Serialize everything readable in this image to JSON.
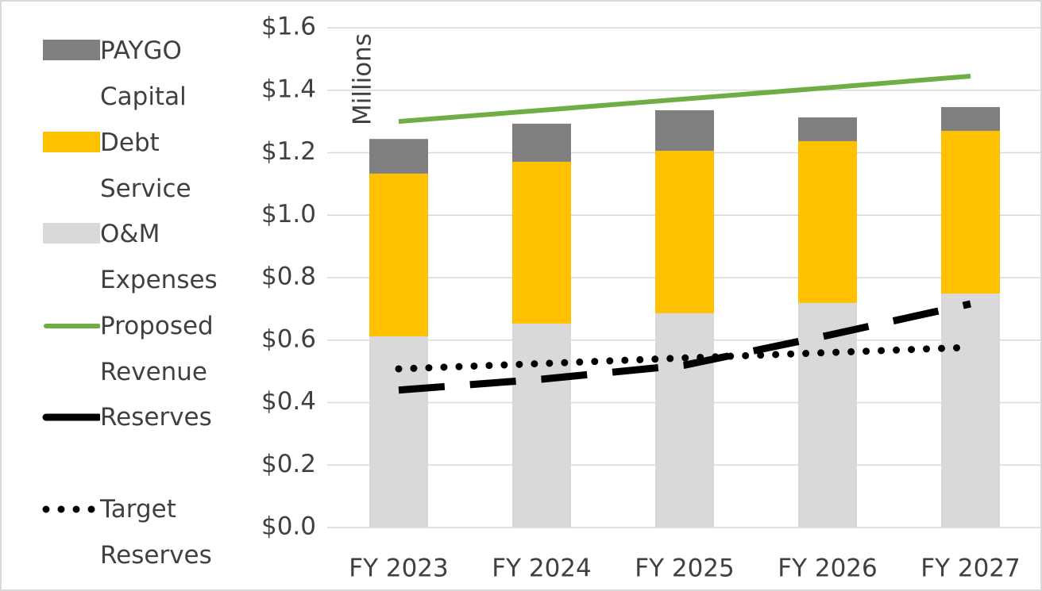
{
  "chart_data": {
    "type": "bar",
    "y_axis_label": "Millions",
    "categories": [
      "FY 2023",
      "FY 2024",
      "FY 2025",
      "FY 2026",
      "FY 2027"
    ],
    "ylim": [
      0,
      1.6
    ],
    "yticks": [
      {
        "value": 0,
        "label": "$0.0"
      },
      {
        "value": 0.2,
        "label": "$0.2"
      },
      {
        "value": 0.4,
        "label": "$0.4"
      },
      {
        "value": 0.6,
        "label": "$0.6"
      },
      {
        "value": 0.8,
        "label": "$0.8"
      },
      {
        "value": 1.0,
        "label": "$1.0"
      },
      {
        "value": 1.2,
        "label": "$1.2"
      },
      {
        "value": 1.4,
        "label": "$1.4"
      },
      {
        "value": 1.6,
        "label": "$1.6"
      }
    ],
    "grid": true,
    "series": [
      {
        "name": "PAYGO Capital",
        "type": "bar",
        "color": "#7f7f7f",
        "values": [
          0.111,
          0.122,
          0.13,
          0.076,
          0.076
        ]
      },
      {
        "name": "Debt Service",
        "type": "bar",
        "color": "#ffc000",
        "values": [
          0.521,
          0.518,
          0.52,
          0.518,
          0.521
        ]
      },
      {
        "name": "O&M Expenses",
        "type": "bar",
        "color": "#d9d9d9",
        "values": [
          0.612,
          0.653,
          0.686,
          0.719,
          0.749
        ]
      },
      {
        "name": "Proposed Revenue",
        "type": "line",
        "style": "solid",
        "color": "#70ad47",
        "values": [
          1.3,
          1.336,
          1.372,
          1.408,
          1.445
        ]
      },
      {
        "name": "Reserves",
        "type": "line",
        "style": "dashed",
        "color": "#000000",
        "values": [
          0.44,
          0.475,
          0.52,
          0.615,
          0.716
        ]
      },
      {
        "name": "Target Reserves",
        "type": "line",
        "style": "dotted",
        "color": "#000000",
        "values": [
          0.508,
          0.525,
          0.543,
          0.56,
          0.577
        ]
      }
    ]
  }
}
